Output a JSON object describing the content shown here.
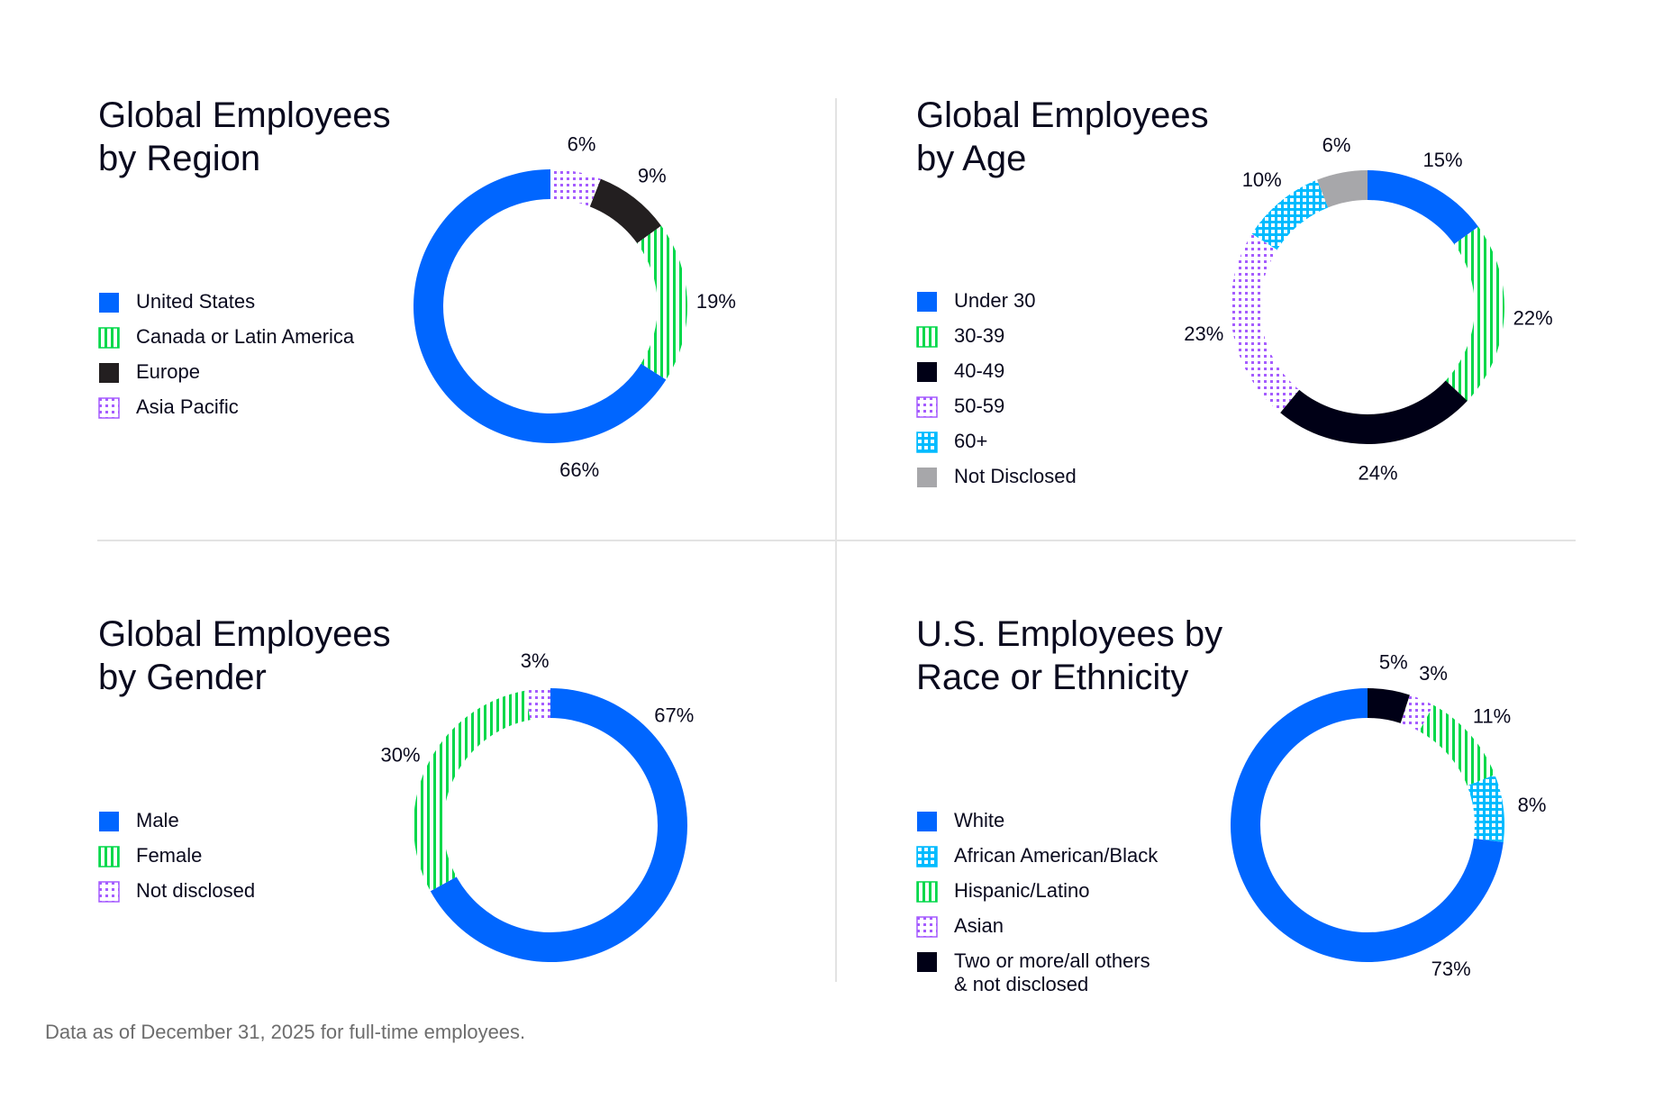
{
  "colors": {
    "blue": "#0066ff",
    "green": "#00d84a",
    "black": "#231f20",
    "navy": "#000016",
    "purple": "#a55cff",
    "cyan": "#00bbff",
    "gray": "#a7a7aa"
  },
  "footer": "Data as of December 31, 2025 for full-time employees.",
  "chart_data": [
    {
      "type": "pie",
      "variant": "donut",
      "title": "Global Employees\nby Region",
      "start": "top",
      "direction": "clockwise",
      "legend": [
        "United States",
        "Canada or Latin America",
        "Europe",
        "Asia Pacific"
      ],
      "slices": [
        {
          "name": "Asia Pacific",
          "value": 6,
          "label": "6%",
          "fill": "purple-dots"
        },
        {
          "name": "Europe",
          "value": 9,
          "label": "9%",
          "fill": "black"
        },
        {
          "name": "Canada or Latin America",
          "value": 19,
          "label": "19%",
          "fill": "green-stripes"
        },
        {
          "name": "United States",
          "value": 66,
          "label": "66%",
          "fill": "blue"
        }
      ]
    },
    {
      "type": "pie",
      "variant": "donut",
      "title": "Global Employees\nby Age",
      "start": "top",
      "direction": "clockwise",
      "legend": [
        "Under 30",
        "30-39",
        "40-49",
        "50-59",
        "60+",
        "Not Disclosed"
      ],
      "slices": [
        {
          "name": "Under 30",
          "value": 15,
          "label": "15%",
          "fill": "blue"
        },
        {
          "name": "30-39",
          "value": 22,
          "label": "22%",
          "fill": "green-stripes"
        },
        {
          "name": "40-49",
          "value": 24,
          "label": "24%",
          "fill": "navy"
        },
        {
          "name": "50-59",
          "value": 23,
          "label": "23%",
          "fill": "purple-dots"
        },
        {
          "name": "60+",
          "value": 10,
          "label": "10%",
          "fill": "cyan-grid"
        },
        {
          "name": "Not Disclosed",
          "value": 6,
          "label": "6%",
          "fill": "gray"
        }
      ]
    },
    {
      "type": "pie",
      "variant": "donut",
      "title": "Global Employees\nby Gender",
      "start": "top",
      "direction": "clockwise",
      "legend": [
        "Male",
        "Female",
        "Not disclosed"
      ],
      "slices": [
        {
          "name": "Male",
          "value": 67,
          "label": "67%",
          "fill": "blue"
        },
        {
          "name": "Female",
          "value": 30,
          "label": "30%",
          "fill": "green-stripes"
        },
        {
          "name": "Not disclosed",
          "value": 3,
          "label": "3%",
          "fill": "purple-dots"
        }
      ]
    },
    {
      "type": "pie",
      "variant": "donut",
      "title": "U.S. Employees by\nRace or Ethnicity",
      "start": "top",
      "direction": "clockwise",
      "legend": [
        "White",
        "African American/Black",
        "Hispanic/Latino",
        "Asian",
        "Two or more/all others\n& not disclosed"
      ],
      "slices": [
        {
          "name": "Two or more/all others & not disclosed",
          "value": 5,
          "label": "5%",
          "fill": "navy"
        },
        {
          "name": "Asian",
          "value": 3,
          "label": "3%",
          "fill": "purple-dots"
        },
        {
          "name": "Hispanic/Latino",
          "value": 11,
          "label": "11%",
          "fill": "green-stripes"
        },
        {
          "name": "African American/Black",
          "value": 8,
          "label": "8%",
          "fill": "cyan-grid"
        },
        {
          "name": "White",
          "value": 73,
          "label": "73%",
          "fill": "blue"
        }
      ]
    }
  ]
}
